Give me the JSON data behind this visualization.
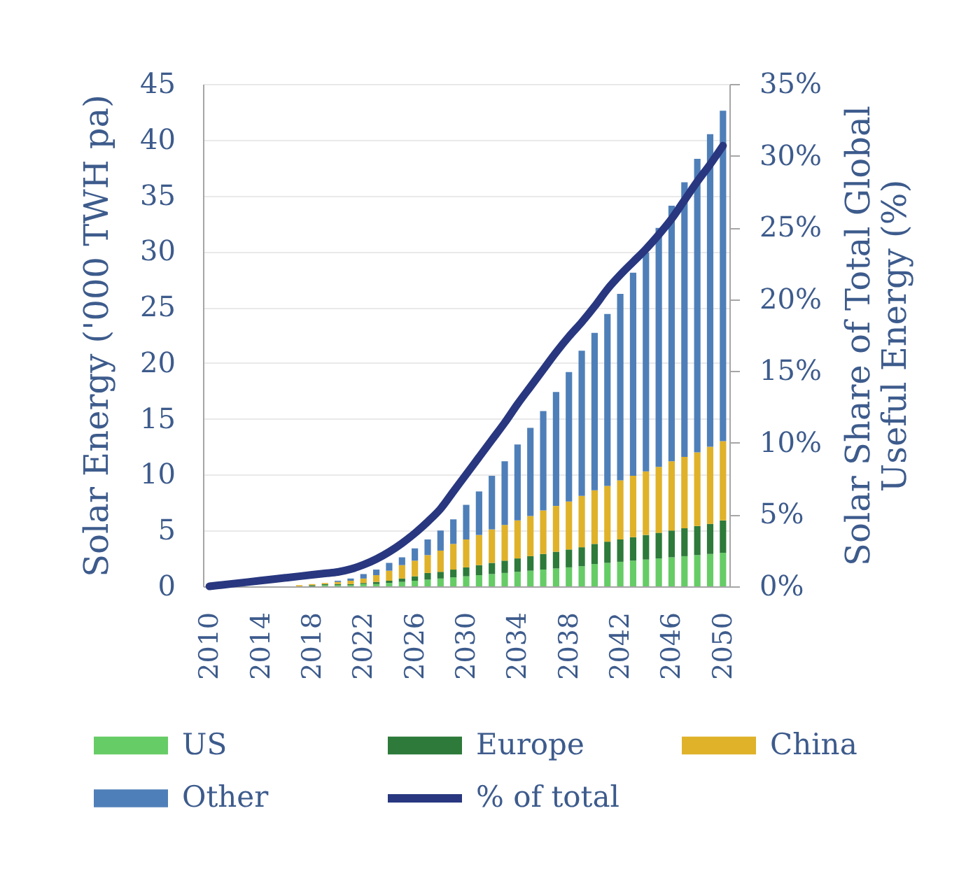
{
  "chart_data": {
    "type": "bar",
    "stacked": true,
    "categories": [
      "2010",
      null,
      null,
      null,
      "2014",
      null,
      null,
      null,
      "2018",
      null,
      null,
      null,
      "2022",
      null,
      null,
      null,
      "2026",
      null,
      null,
      null,
      "2030",
      null,
      null,
      null,
      "2034",
      null,
      null,
      null,
      "2038",
      null,
      null,
      null,
      "2042",
      null,
      null,
      null,
      "2046",
      null,
      null,
      null,
      "2050"
    ],
    "series": [
      {
        "name": "US",
        "color": "#66cc66",
        "values": [
          0,
          0,
          0,
          0,
          0,
          0,
          0,
          0,
          0,
          0.1,
          0.1,
          0.1,
          0.2,
          0.2,
          0.3,
          0.4,
          0.5,
          0.6,
          0.7,
          0.8,
          0.9,
          1.0,
          1.1,
          1.2,
          1.3,
          1.4,
          1.5,
          1.6,
          1.7,
          1.8,
          2.0,
          2.1,
          2.2,
          2.3,
          2.4,
          2.5,
          2.6,
          2.7,
          2.8,
          2.9,
          3.0
        ]
      },
      {
        "name": "Europe",
        "color": "#2d7a3a",
        "values": [
          0,
          0,
          0,
          0,
          0,
          0,
          0,
          0,
          0.1,
          0.1,
          0.1,
          0.1,
          0.1,
          0.2,
          0.2,
          0.3,
          0.4,
          0.6,
          0.6,
          0.7,
          0.8,
          0.9,
          1.0,
          1.1,
          1.2,
          1.3,
          1.4,
          1.5,
          1.6,
          1.7,
          1.8,
          1.9,
          2.0,
          2.1,
          2.2,
          2.3,
          2.4,
          2.5,
          2.6,
          2.7,
          2.9
        ]
      },
      {
        "name": "China",
        "color": "#dfb22a",
        "values": [
          0,
          0,
          0,
          0,
          0,
          0,
          0,
          0.1,
          0.1,
          0.1,
          0.2,
          0.3,
          0.4,
          0.6,
          0.9,
          1.2,
          1.4,
          1.6,
          1.9,
          2.3,
          2.5,
          2.7,
          3.0,
          3.2,
          3.4,
          3.6,
          3.9,
          4.1,
          4.3,
          4.6,
          4.8,
          5.0,
          5.3,
          5.5,
          5.7,
          5.9,
          6.2,
          6.4,
          6.6,
          6.9,
          7.1
        ]
      },
      {
        "name": "Other",
        "color": "#4f7fb8",
        "values": [
          0,
          0,
          0,
          0,
          0,
          0,
          0,
          0,
          0,
          0,
          0.1,
          0.2,
          0.4,
          0.5,
          0.7,
          0.7,
          1.1,
          1.4,
          1.8,
          2.2,
          3.1,
          3.9,
          4.8,
          5.7,
          6.8,
          7.9,
          8.9,
          10.2,
          11.6,
          13.0,
          14.1,
          15.4,
          16.7,
          18.2,
          19.6,
          21.4,
          22.9,
          24.6,
          26.3,
          28.0,
          29.6
        ]
      },
      {
        "name": "% of total",
        "type": "line",
        "axis": "y2",
        "color": "#28377f",
        "values": [
          0.0,
          0.1,
          0.2,
          0.3,
          0.4,
          0.5,
          0.6,
          0.7,
          0.8,
          0.9,
          1.0,
          1.2,
          1.5,
          1.9,
          2.4,
          3.0,
          3.7,
          4.5,
          5.4,
          6.6,
          7.8,
          9.0,
          10.2,
          11.4,
          12.7,
          13.9,
          15.1,
          16.3,
          17.4,
          18.4,
          19.5,
          20.7,
          21.7,
          22.6,
          23.5,
          24.5,
          25.6,
          26.9,
          28.2,
          29.4,
          30.7
        ]
      }
    ],
    "ylabel": "Solar Energy ('000 TWH pa)",
    "y2label": "Solar Share of Total Global\nUseful Energy (%)",
    "ylim": [
      0,
      45
    ],
    "yticks": [
      0,
      5,
      10,
      15,
      20,
      25,
      30,
      35,
      40,
      45
    ],
    "y2lim": [
      0,
      35
    ],
    "y2ticks": [
      {
        "value": 0,
        "label": "0%"
      },
      {
        "value": 5,
        "label": "5%"
      },
      {
        "value": 10,
        "label": "10%"
      },
      {
        "value": 15,
        "label": "15%"
      },
      {
        "value": 20,
        "label": "20%"
      },
      {
        "value": 25,
        "label": "25%"
      },
      {
        "value": 30,
        "label": "30%"
      },
      {
        "value": 35,
        "label": "35%"
      }
    ],
    "grid": "y",
    "legend": "bottom"
  }
}
